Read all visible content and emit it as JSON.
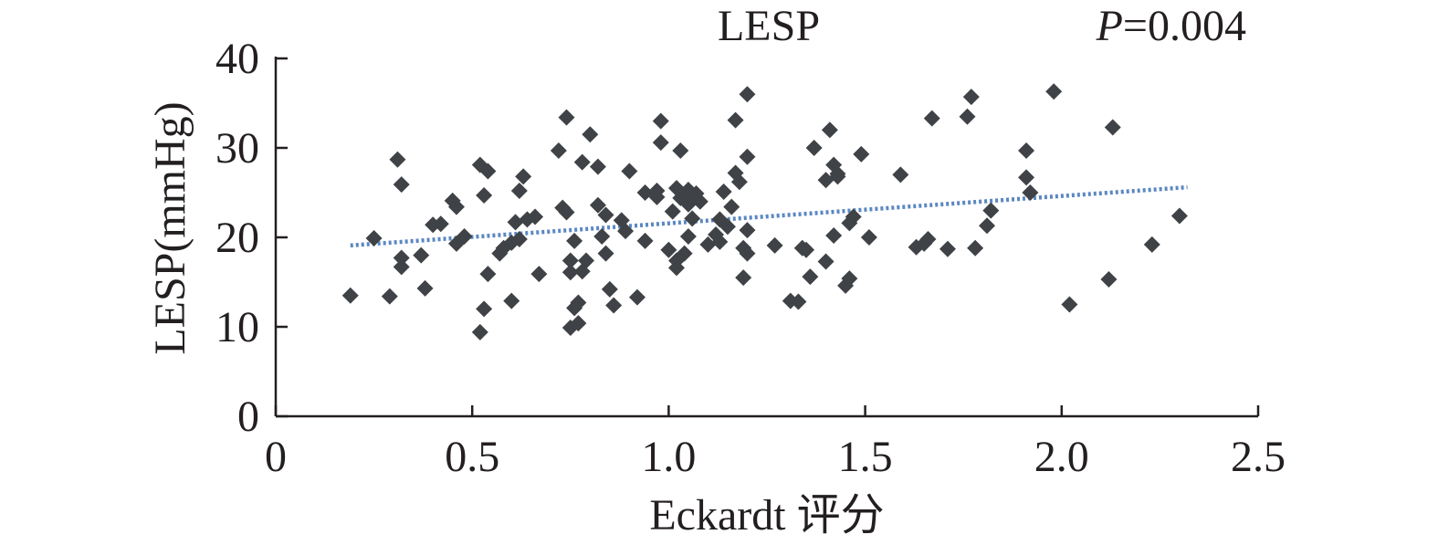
{
  "chart_data": {
    "type": "scatter",
    "title": "LESP",
    "p_value": {
      "prefix": "P",
      "text": "=0.004"
    },
    "xlabel": "Eckardt 评分",
    "ylabel": "LESP(mmHg)",
    "xlim": [
      0,
      2.5
    ],
    "ylim": [
      0,
      40
    ],
    "x_ticks": [
      {
        "value": 0,
        "label": "0"
      },
      {
        "value": 0.5,
        "label": "0.5"
      },
      {
        "value": 1.0,
        "label": "1.0"
      },
      {
        "value": 1.5,
        "label": "1.5"
      },
      {
        "value": 2.0,
        "label": "2.0"
      },
      {
        "value": 2.5,
        "label": "2.5"
      }
    ],
    "y_ticks": [
      {
        "value": 0,
        "label": "0"
      },
      {
        "value": 10,
        "label": "10"
      },
      {
        "value": 20,
        "label": "20"
      },
      {
        "value": 30,
        "label": "30"
      },
      {
        "value": 40,
        "label": "40"
      }
    ],
    "grid": false,
    "trendline": {
      "x": [
        0.19,
        2.32
      ],
      "y": [
        19.1,
        25.6
      ],
      "style": "dotted",
      "color": "#5b87c2"
    },
    "series": [
      {
        "marker": "diamond",
        "color": "#3f4246",
        "points": [
          [
            0.19,
            13.5
          ],
          [
            0.29,
            13.4
          ],
          [
            0.25,
            19.9
          ],
          [
            0.31,
            28.7
          ],
          [
            0.32,
            25.9
          ],
          [
            0.32,
            17.7
          ],
          [
            0.32,
            16.7
          ],
          [
            0.37,
            18.0
          ],
          [
            0.38,
            14.3
          ],
          [
            0.4,
            21.4
          ],
          [
            0.42,
            21.5
          ],
          [
            0.45,
            24.1
          ],
          [
            0.46,
            23.4
          ],
          [
            0.46,
            19.3
          ],
          [
            0.48,
            20.1
          ],
          [
            0.52,
            28.1
          ],
          [
            0.52,
            9.4
          ],
          [
            0.53,
            24.7
          ],
          [
            0.53,
            12.0
          ],
          [
            0.54,
            27.4
          ],
          [
            0.54,
            15.9
          ],
          [
            0.57,
            18.2
          ],
          [
            0.58,
            18.8
          ],
          [
            0.6,
            19.4
          ],
          [
            0.6,
            12.9
          ],
          [
            0.61,
            21.7
          ],
          [
            0.62,
            25.2
          ],
          [
            0.62,
            19.8
          ],
          [
            0.63,
            26.8
          ],
          [
            0.64,
            22.0
          ],
          [
            0.66,
            22.3
          ],
          [
            0.67,
            15.9
          ],
          [
            0.72,
            29.7
          ],
          [
            0.73,
            23.3
          ],
          [
            0.74,
            33.4
          ],
          [
            0.74,
            22.8
          ],
          [
            0.75,
            17.4
          ],
          [
            0.75,
            16.1
          ],
          [
            0.75,
            9.9
          ],
          [
            0.76,
            19.6
          ],
          [
            0.76,
            12.1
          ],
          [
            0.77,
            10.4
          ],
          [
            0.77,
            12.7
          ],
          [
            0.78,
            28.4
          ],
          [
            0.78,
            16.2
          ],
          [
            0.79,
            17.4
          ],
          [
            0.8,
            31.5
          ],
          [
            0.82,
            27.9
          ],
          [
            0.82,
            23.6
          ],
          [
            0.83,
            20.1
          ],
          [
            0.84,
            22.5
          ],
          [
            0.84,
            18.2
          ],
          [
            0.85,
            14.2
          ],
          [
            0.86,
            12.4
          ],
          [
            0.88,
            21.9
          ],
          [
            0.89,
            20.7
          ],
          [
            0.9,
            27.4
          ],
          [
            0.92,
            13.3
          ],
          [
            0.94,
            19.6
          ],
          [
            0.94,
            25.0
          ],
          [
            0.97,
            24.5
          ],
          [
            0.97,
            25.2
          ],
          [
            0.98,
            33.0
          ],
          [
            0.98,
            30.6
          ],
          [
            1.0,
            18.6
          ],
          [
            1.01,
            22.9
          ],
          [
            1.02,
            17.4
          ],
          [
            1.02,
            16.6
          ],
          [
            1.02,
            25.5
          ],
          [
            1.03,
            29.7
          ],
          [
            1.03,
            24.4
          ],
          [
            1.04,
            18.2
          ],
          [
            1.05,
            25.3
          ],
          [
            1.05,
            23.7
          ],
          [
            1.05,
            20.1
          ],
          [
            1.06,
            24.4
          ],
          [
            1.06,
            22.1
          ],
          [
            1.07,
            24.9
          ],
          [
            1.08,
            24.0
          ],
          [
            1.1,
            19.2
          ],
          [
            1.12,
            20.3
          ],
          [
            1.13,
            19.5
          ],
          [
            1.13,
            22.0
          ],
          [
            1.14,
            25.1
          ],
          [
            1.15,
            21.2
          ],
          [
            1.16,
            23.4
          ],
          [
            1.17,
            27.2
          ],
          [
            1.17,
            33.1
          ],
          [
            1.18,
            26.2
          ],
          [
            1.19,
            18.8
          ],
          [
            1.19,
            15.5
          ],
          [
            1.2,
            36.0
          ],
          [
            1.2,
            29.0
          ],
          [
            1.2,
            20.8
          ],
          [
            1.2,
            18.2
          ],
          [
            1.27,
            19.1
          ],
          [
            1.31,
            12.9
          ],
          [
            1.33,
            12.8
          ],
          [
            1.34,
            18.8
          ],
          [
            1.35,
            18.6
          ],
          [
            1.36,
            15.6
          ],
          [
            1.37,
            30.0
          ],
          [
            1.4,
            17.3
          ],
          [
            1.4,
            26.4
          ],
          [
            1.41,
            32.0
          ],
          [
            1.42,
            28.1
          ],
          [
            1.42,
            20.2
          ],
          [
            1.43,
            26.8
          ],
          [
            1.43,
            27.1
          ],
          [
            1.45,
            14.6
          ],
          [
            1.46,
            15.4
          ],
          [
            1.46,
            21.6
          ],
          [
            1.47,
            22.3
          ],
          [
            1.49,
            29.3
          ],
          [
            1.51,
            20.0
          ],
          [
            1.59,
            27.0
          ],
          [
            1.63,
            18.9
          ],
          [
            1.65,
            19.3
          ],
          [
            1.66,
            19.8
          ],
          [
            1.67,
            33.3
          ],
          [
            1.71,
            18.7
          ],
          [
            1.76,
            33.5
          ],
          [
            1.77,
            35.7
          ],
          [
            1.78,
            18.8
          ],
          [
            1.81,
            21.3
          ],
          [
            1.82,
            23.0
          ],
          [
            1.91,
            29.7
          ],
          [
            1.91,
            26.7
          ],
          [
            1.92,
            25.0
          ],
          [
            1.98,
            36.3
          ],
          [
            2.02,
            12.5
          ],
          [
            2.12,
            15.3
          ],
          [
            2.13,
            32.3
          ],
          [
            2.23,
            19.2
          ],
          [
            2.3,
            22.4
          ]
        ]
      }
    ]
  }
}
